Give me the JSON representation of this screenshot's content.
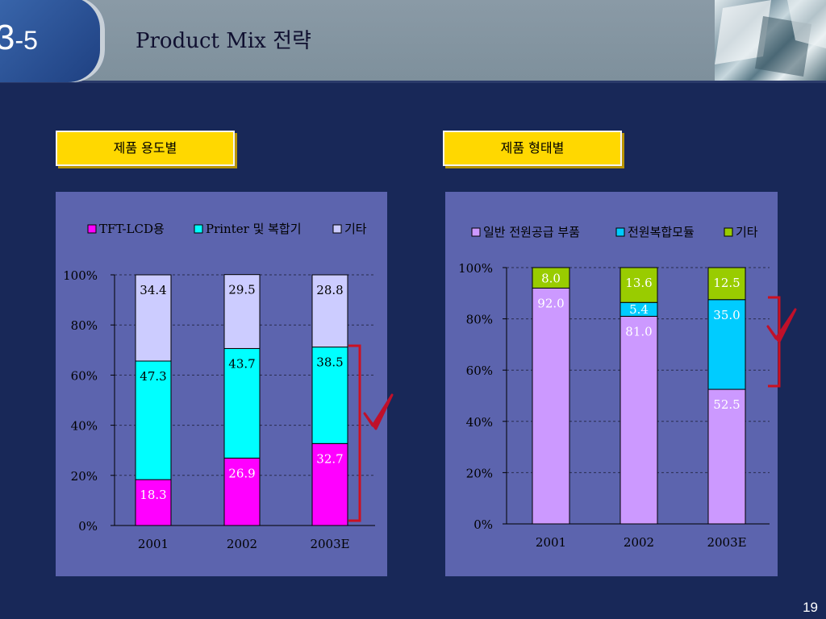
{
  "header": {
    "section_major": "3",
    "section_minor": "-5",
    "title": "Product Mix 전략"
  },
  "boxes": {
    "left": "제품 용도별",
    "right": "제품 형태별"
  },
  "page_number": "19",
  "chart_data": [
    {
      "type": "bar",
      "stacked": true,
      "percent_stacked": true,
      "categories": [
        "2001",
        "2002",
        "2003E"
      ],
      "series": [
        {
          "name": "TFT-LCD용",
          "color": "#ff00ff",
          "values": [
            18.3,
            26.9,
            32.7
          ]
        },
        {
          "name": "Printer 및 복합기",
          "color": "#00ffff",
          "values": [
            47.3,
            43.7,
            38.5
          ]
        },
        {
          "name": "기타",
          "color": "#ccccff",
          "values": [
            34.4,
            29.5,
            28.8
          ]
        }
      ],
      "yticks": [
        "0%",
        "20%",
        "40%",
        "60%",
        "80%",
        "100%"
      ],
      "ylim": [
        0,
        100
      ],
      "legend": "top",
      "grid": true
    },
    {
      "type": "bar",
      "stacked": true,
      "percent_stacked": true,
      "categories": [
        "2001",
        "2002",
        "2003E"
      ],
      "series": [
        {
          "name": "일반 전원공급 부품",
          "color": "#cc99ff",
          "values": [
            92.0,
            81.0,
            52.5
          ]
        },
        {
          "name": "전원복합모듈",
          "color": "#00ccff",
          "values": [
            0,
            5.4,
            35.0
          ]
        },
        {
          "name": "기타",
          "color": "#99cc00",
          "values": [
            8.0,
            13.6,
            12.5
          ]
        }
      ],
      "yticks": [
        "0%",
        "20%",
        "40%",
        "60%",
        "80%",
        "100%"
      ],
      "ylim": [
        0,
        100
      ],
      "legend": "top",
      "grid": true
    }
  ]
}
